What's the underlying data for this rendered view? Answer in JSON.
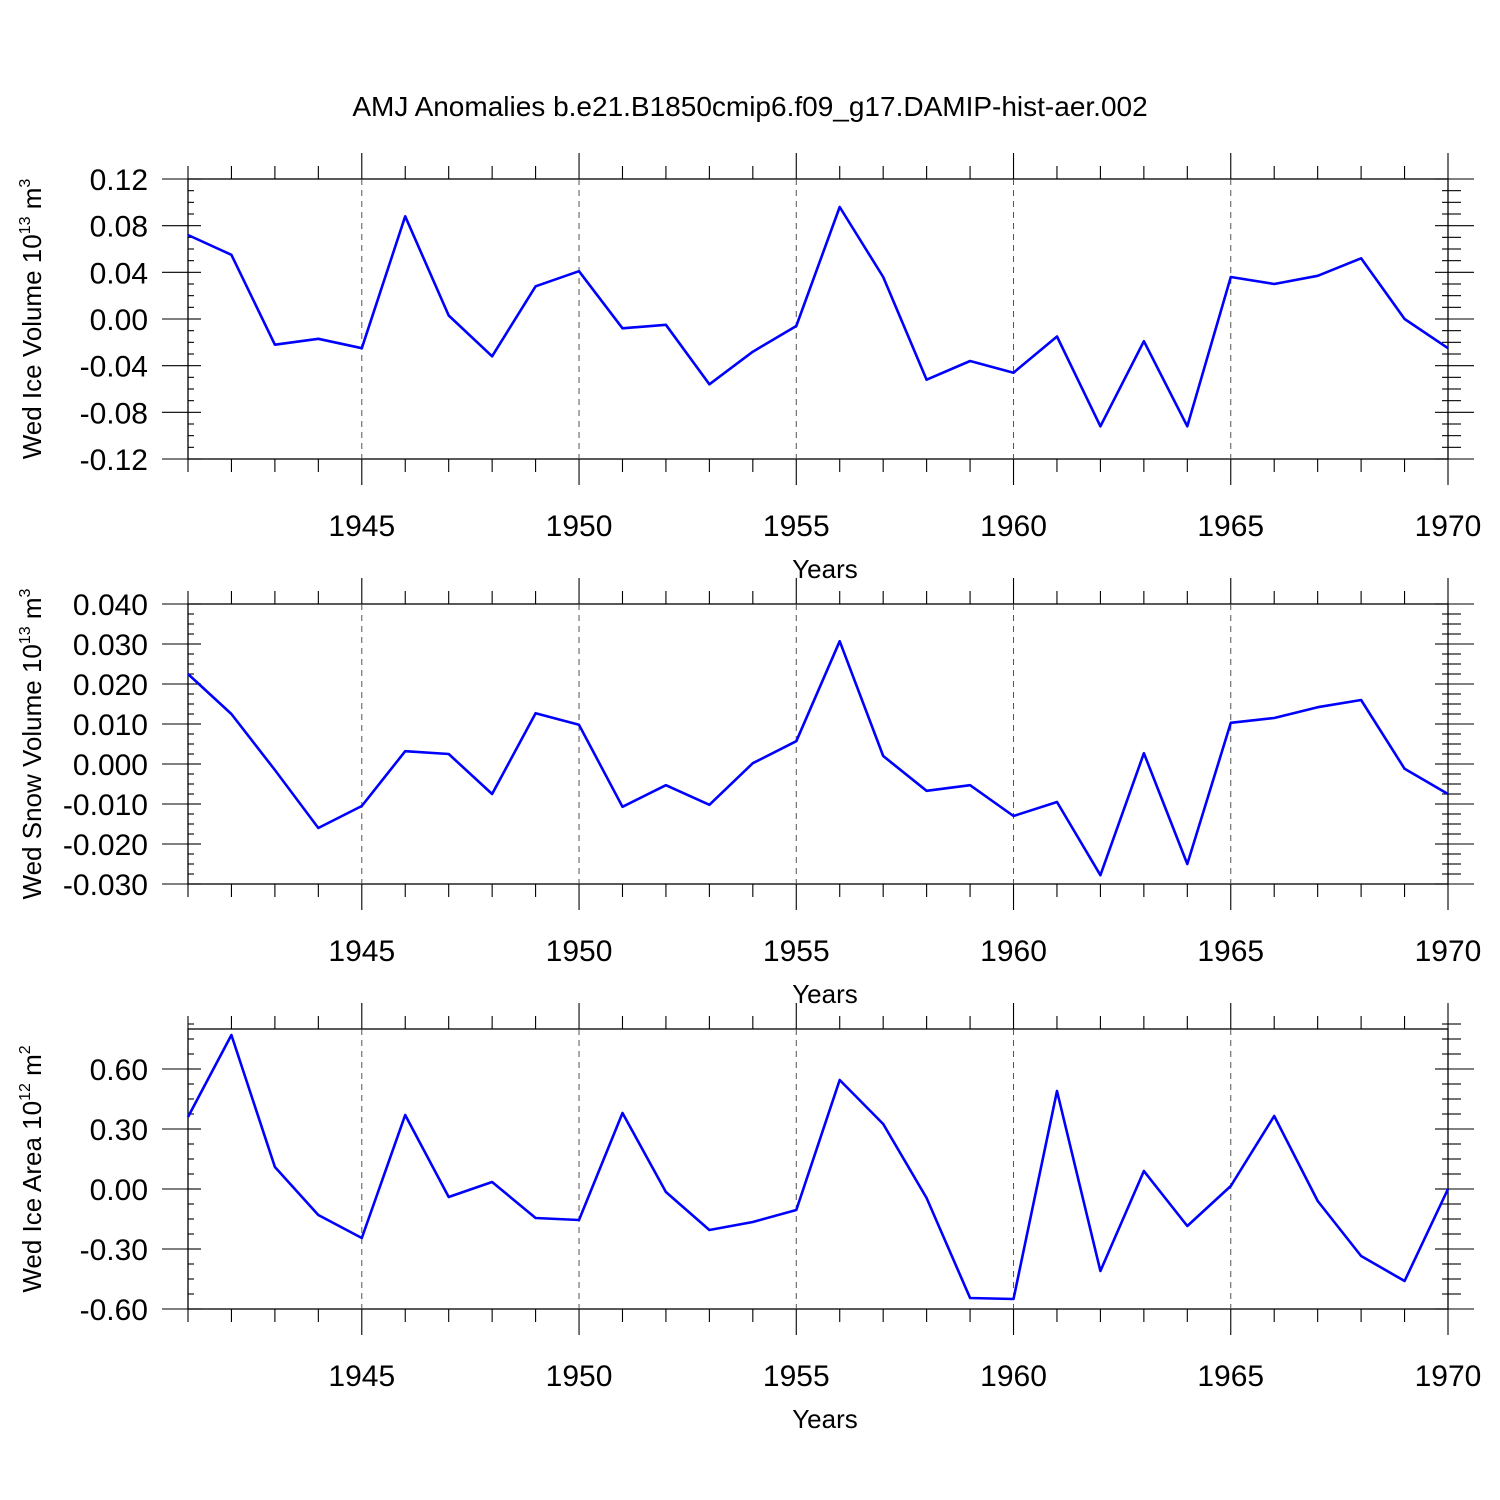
{
  "title": "AMJ Anomalies b.e21.B1850cmip6.f09_g17.DAMIP-hist-aer.002",
  "line_color": "#0000ff",
  "chart_data": [
    {
      "type": "line",
      "title": "",
      "xlabel": "Years",
      "ylabel": {
        "text": "Wed Ice Volume 10",
        "exponent": "13",
        "unit": " m",
        "unit_exponent": "3"
      },
      "xlim": [
        1941,
        1970
      ],
      "ylim": [
        -0.12,
        0.12
      ],
      "xticks": [
        1945,
        1950,
        1955,
        1960,
        1965,
        1970
      ],
      "yticks": [
        -0.12,
        -0.08,
        -0.04,
        0.0,
        0.04,
        0.08,
        0.12
      ],
      "ytick_labels": [
        "-0.12",
        "-0.08",
        "-0.04",
        "0.00",
        "0.04",
        "0.08",
        "0.12"
      ],
      "grid": "dashed vertical at major x ticks",
      "x": [
        1941,
        1942,
        1943,
        1944,
        1945,
        1946,
        1947,
        1948,
        1949,
        1950,
        1951,
        1952,
        1953,
        1954,
        1955,
        1956,
        1957,
        1958,
        1959,
        1960,
        1961,
        1962,
        1963,
        1964,
        1965,
        1966,
        1967,
        1968,
        1969,
        1970
      ],
      "series": [
        {
          "values": [
            0.072,
            0.055,
            -0.022,
            -0.017,
            -0.025,
            0.088,
            0.003,
            -0.032,
            0.028,
            0.041,
            -0.008,
            -0.005,
            -0.056,
            -0.028,
            -0.006,
            0.096,
            0.036,
            -0.052,
            -0.036,
            -0.046,
            -0.015,
            -0.092,
            -0.019,
            -0.092,
            0.036,
            0.03,
            0.037,
            0.052,
            0.0,
            -0.025
          ]
        }
      ]
    },
    {
      "type": "line",
      "title": "",
      "xlabel": "Years",
      "ylabel": {
        "text": "Wed Snow Volume 10",
        "exponent": "13",
        "unit": " m",
        "unit_exponent": "3"
      },
      "xlim": [
        1941,
        1970
      ],
      "ylim": [
        -0.03,
        0.04
      ],
      "xticks": [
        1945,
        1950,
        1955,
        1960,
        1965,
        1970
      ],
      "yticks": [
        -0.03,
        -0.02,
        -0.01,
        0.0,
        0.01,
        0.02,
        0.03,
        0.04
      ],
      "ytick_labels": [
        "-0.030",
        "-0.020",
        "-0.010",
        "0.000",
        "0.010",
        "0.020",
        "0.030",
        "0.040"
      ],
      "grid": "dashed vertical at major x ticks",
      "x": [
        1941,
        1942,
        1943,
        1944,
        1945,
        1946,
        1947,
        1948,
        1949,
        1950,
        1951,
        1952,
        1953,
        1954,
        1955,
        1956,
        1957,
        1958,
        1959,
        1960,
        1961,
        1962,
        1963,
        1964,
        1965,
        1966,
        1967,
        1968,
        1969,
        1970
      ],
      "series": [
        {
          "values": [
            0.0225,
            0.0125,
            -0.0015,
            -0.016,
            -0.0105,
            0.0032,
            0.0025,
            -0.0075,
            0.0127,
            0.0098,
            -0.0107,
            -0.0053,
            -0.0102,
            0.0002,
            0.0057,
            0.0307,
            0.002,
            -0.0067,
            -0.0053,
            -0.013,
            -0.0095,
            -0.0278,
            0.0027,
            -0.025,
            0.0103,
            0.0115,
            0.0142,
            0.016,
            -0.0012,
            -0.0075
          ]
        }
      ]
    },
    {
      "type": "line",
      "title": "",
      "xlabel": "Years",
      "ylabel": {
        "text": "Wed Ice Area 10",
        "exponent": "12",
        "unit": " m",
        "unit_exponent": "2"
      },
      "xlim": [
        1941,
        1970
      ],
      "ylim": [
        -0.6,
        0.8
      ],
      "xticks": [
        1945,
        1950,
        1955,
        1960,
        1965,
        1970
      ],
      "yticks": [
        -0.6,
        -0.3,
        0.0,
        0.3,
        0.6
      ],
      "ytick_labels": [
        "-0.60",
        "-0.30",
        "0.00",
        "0.30",
        "0.60"
      ],
      "grid": "dashed vertical at major x ticks",
      "x": [
        1941,
        1942,
        1943,
        1944,
        1945,
        1946,
        1947,
        1948,
        1949,
        1950,
        1951,
        1952,
        1953,
        1954,
        1955,
        1956,
        1957,
        1958,
        1959,
        1960,
        1961,
        1962,
        1963,
        1964,
        1965,
        1966,
        1967,
        1968,
        1969,
        1970
      ],
      "series": [
        {
          "values": [
            0.36,
            0.77,
            0.11,
            -0.13,
            -0.245,
            0.37,
            -0.04,
            0.035,
            -0.145,
            -0.155,
            0.38,
            -0.015,
            -0.205,
            -0.165,
            -0.105,
            0.545,
            0.325,
            -0.045,
            -0.545,
            -0.55,
            0.49,
            -0.41,
            0.09,
            -0.185,
            0.015,
            0.365,
            -0.06,
            -0.335,
            -0.46,
            0.0
          ]
        }
      ]
    }
  ]
}
